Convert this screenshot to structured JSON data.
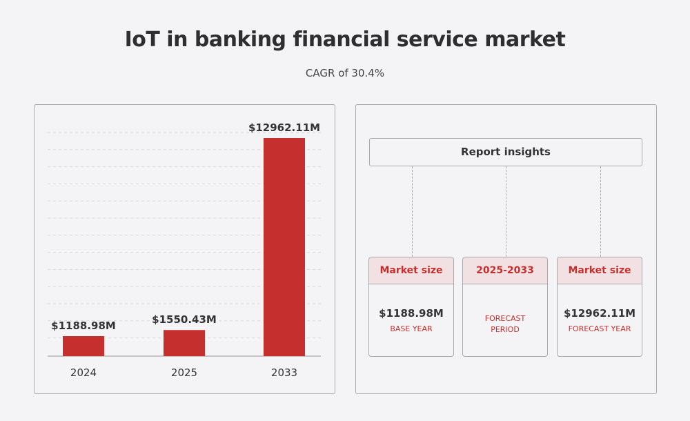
{
  "header": {
    "title": "IoT in banking financial service market",
    "subtitle": "CAGR of 30.4%"
  },
  "chart_data": {
    "type": "bar",
    "categories": [
      "2024",
      "2025",
      "2033"
    ],
    "values": [
      1188.98,
      1550.43,
      12962.11
    ],
    "data_labels": [
      "$1188.98M",
      "$1550.43M",
      "$12962.11M"
    ],
    "title": "",
    "xlabel": "",
    "ylabel": "",
    "ylim": [
      0,
      12962.11
    ],
    "grid": true,
    "bar_color": "#c5302f"
  },
  "insights": {
    "title": "Report insights",
    "cards": [
      {
        "header": "Market size",
        "value": "$1188.98M",
        "label": "BASE YEAR"
      },
      {
        "header": "2025-2033",
        "value": "",
        "label": "FORECAST PERIOD"
      },
      {
        "header": "Market size",
        "value": "$12962.11M",
        "label": "FORECAST YEAR"
      }
    ]
  }
}
